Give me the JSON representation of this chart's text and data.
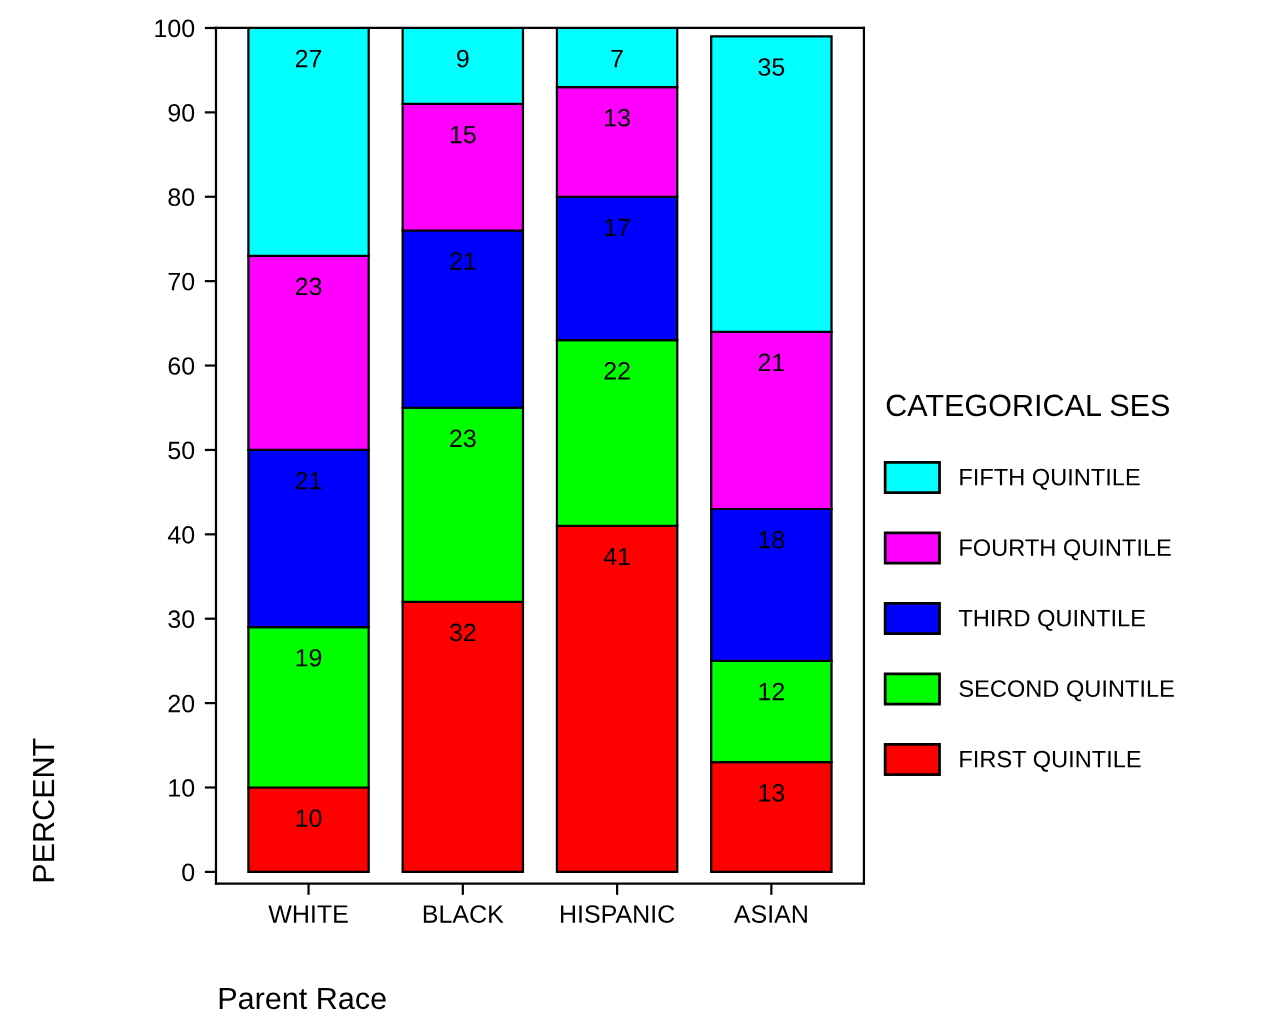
{
  "chart_data": {
    "type": "bar",
    "stacked": true,
    "xlabel": "Parent Race",
    "ylabel": "PERCENT",
    "legend_title": "CATEGORICAL SES",
    "categories": [
      "WHITE",
      "BLACK",
      "HISPANIC",
      "ASIAN"
    ],
    "series": [
      {
        "name": "FIRST QUINTILE",
        "color": "#ff0000",
        "values": [
          10,
          32,
          41,
          13
        ]
      },
      {
        "name": "SECOND QUINTILE",
        "color": "#00ff00",
        "values": [
          19,
          23,
          22,
          12
        ]
      },
      {
        "name": "THIRD QUINTILE",
        "color": "#0000ff",
        "values": [
          21,
          21,
          17,
          18
        ]
      },
      {
        "name": "FOURTH QUINTILE",
        "color": "#ff00ff",
        "values": [
          23,
          15,
          13,
          21
        ]
      },
      {
        "name": "FIFTH QUINTILE",
        "color": "#00ffff",
        "values": [
          27,
          9,
          7,
          35
        ]
      }
    ],
    "ylim": [
      -1.4,
      100
    ],
    "yticks": [
      0,
      10,
      20,
      30,
      40,
      50,
      60,
      70,
      80,
      90,
      100
    ],
    "data_labels": true,
    "legend": "right",
    "grid": false
  }
}
